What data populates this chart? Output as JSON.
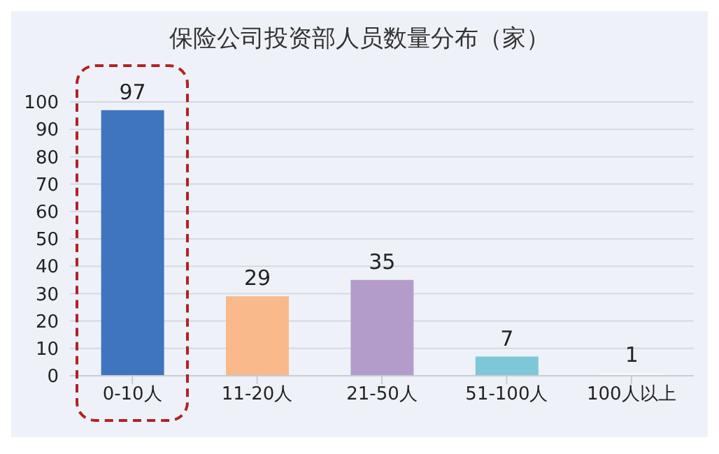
{
  "chart_data": {
    "type": "bar",
    "title": "保险公司投资部人员数量分布（家）",
    "categories": [
      "0-10人",
      "11-20人",
      "21-50人",
      "51-100人",
      "100人以上"
    ],
    "values": [
      97,
      29,
      35,
      7,
      1
    ],
    "colors": [
      "#3f74bf",
      "#f9b98a",
      "#b49cca",
      "#7cc8d8",
      "#f7f8fb"
    ],
    "ylim": [
      0,
      100
    ],
    "yticks": [
      0,
      10,
      20,
      30,
      40,
      50,
      60,
      70,
      80,
      90,
      100
    ],
    "grid": "y",
    "data_labels": true
  }
}
